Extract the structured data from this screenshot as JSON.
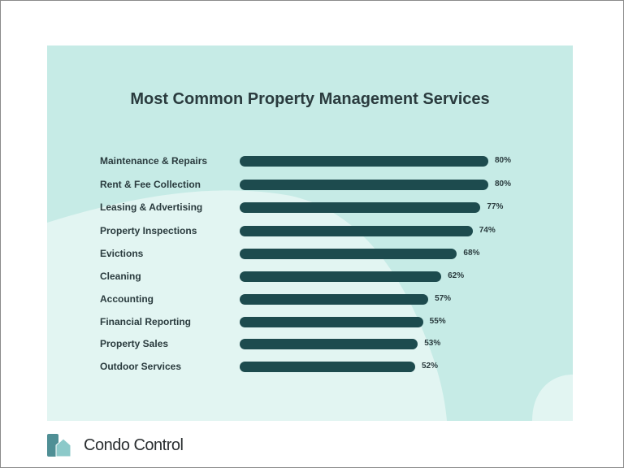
{
  "chart_data": {
    "type": "bar",
    "orientation": "horizontal",
    "title": "Most Common Property Management Services",
    "categories": [
      "Maintenance & Repairs",
      "Rent & Fee Collection",
      "Leasing & Advertising",
      "Property Inspections",
      "Evictions",
      "Cleaning",
      "Accounting",
      "Financial Reporting",
      "Property Sales",
      "Outdoor Services"
    ],
    "values": [
      80,
      80,
      77,
      74,
      68,
      62,
      57,
      55,
      53,
      52
    ],
    "value_labels": [
      "80%",
      "80%",
      "77%",
      "74%",
      "68%",
      "62%",
      "57%",
      "55%",
      "53%",
      "52%"
    ],
    "unit": "%",
    "grid": false,
    "bar_color": "#1d4b4e",
    "background_color": "#c6ebe6"
  },
  "brand": {
    "name": "Condo Control",
    "logo_colors": [
      "#4f8f95",
      "#8cc9c9"
    ]
  }
}
